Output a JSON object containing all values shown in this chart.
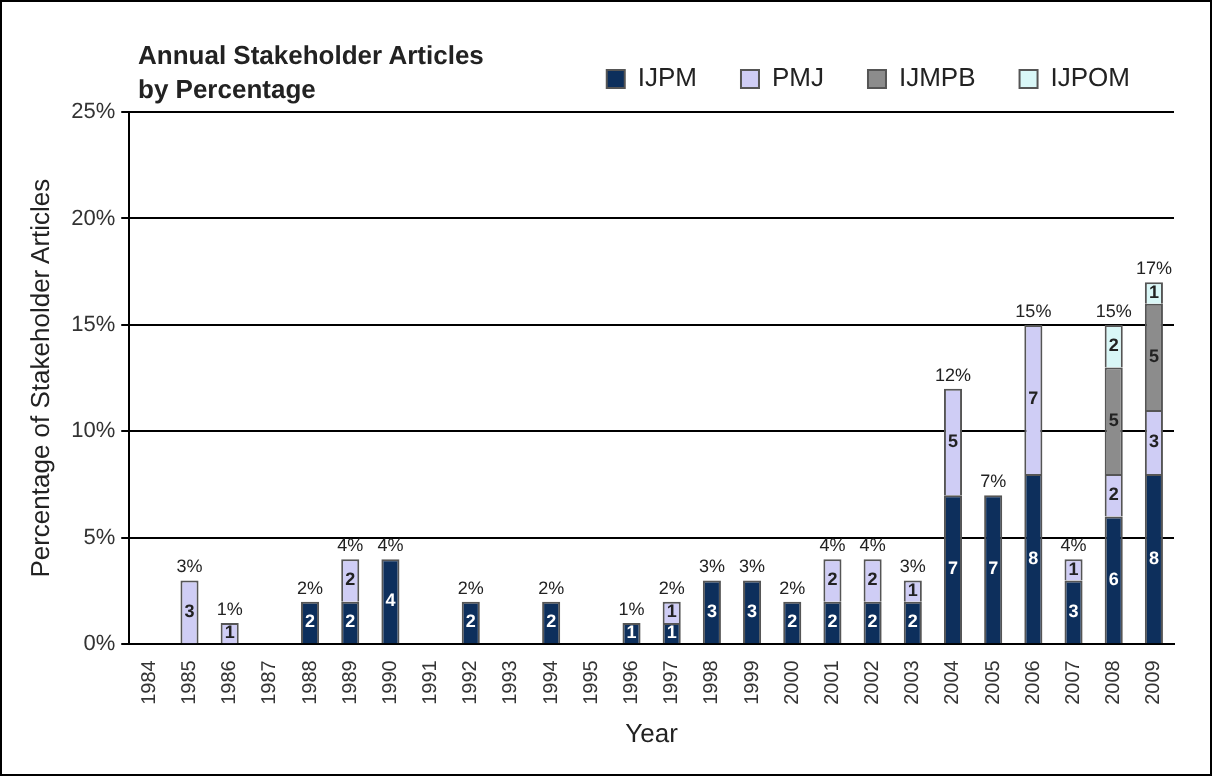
{
  "chart_data": {
    "type": "bar",
    "title": "Annual Stakeholder Articles\nby Percentage",
    "xlabel": "Year",
    "ylabel": "Percentage of Stakeholder Articles",
    "categories": [
      "1984",
      "1985",
      "1986",
      "1987",
      "1988",
      "1989",
      "1990",
      "1991",
      "1992",
      "1993",
      "1994",
      "1995",
      "1996",
      "1997",
      "1998",
      "1999",
      "2000",
      "2001",
      "2002",
      "2003",
      "2004",
      "2005",
      "2006",
      "2007",
      "2008",
      "2009"
    ],
    "series": [
      {
        "name": "IJPM",
        "color": "#0d2f5c",
        "values": [
          null,
          null,
          null,
          null,
          2,
          2,
          4,
          null,
          2,
          null,
          2,
          null,
          1,
          1,
          3,
          3,
          2,
          2,
          2,
          2,
          7,
          7,
          8,
          3,
          6,
          8
        ]
      },
      {
        "name": "PMJ",
        "color": "#cfcdf5",
        "values": [
          null,
          3,
          1,
          null,
          null,
          2,
          null,
          null,
          null,
          null,
          null,
          null,
          null,
          1,
          null,
          null,
          null,
          2,
          2,
          1,
          5,
          null,
          7,
          1,
          2,
          3
        ]
      },
      {
        "name": "IJMPB",
        "color": "#8c8c8c",
        "values": [
          null,
          null,
          null,
          null,
          null,
          null,
          null,
          null,
          null,
          null,
          null,
          null,
          null,
          null,
          null,
          null,
          null,
          null,
          null,
          null,
          null,
          null,
          null,
          null,
          5,
          5
        ]
      },
      {
        "name": "IJPOM",
        "color": "#d9f7f7",
        "values": [
          null,
          null,
          null,
          null,
          null,
          null,
          null,
          null,
          null,
          null,
          null,
          null,
          null,
          null,
          null,
          null,
          null,
          null,
          null,
          null,
          null,
          null,
          null,
          null,
          2,
          1
        ]
      }
    ],
    "stacked": true,
    "data_labels": true,
    "totals": [
      null,
      "3%",
      "1%",
      null,
      "2%",
      "4%",
      "4%",
      null,
      "2%",
      null,
      "2%",
      null,
      "1%",
      "2%",
      "3%",
      "3%",
      "2%",
      "4%",
      "4%",
      "3%",
      "12%",
      "7%",
      "15%",
      "4%",
      "15%",
      "17%"
    ],
    "ylim": [
      0,
      25
    ],
    "yticks": [
      {
        "value": 0,
        "label": "0%"
      },
      {
        "value": 5,
        "label": "5%"
      },
      {
        "value": 10,
        "label": "10%"
      },
      {
        "value": 15,
        "label": "15%"
      },
      {
        "value": 20,
        "label": "20%"
      },
      {
        "value": 25,
        "label": "25%"
      }
    ],
    "grid": "y",
    "legend": "top right"
  }
}
